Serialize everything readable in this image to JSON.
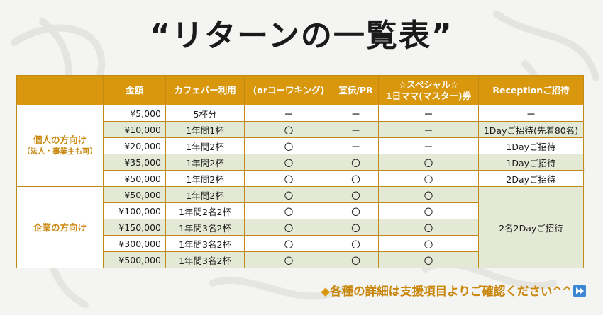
{
  "title": "“リターンの一覧表”",
  "table": {
    "headers": [
      "",
      "金額",
      "カフェバー利用",
      "(orコーワキング)",
      "宣伝/PR",
      "☆スペシャル☆\n1日ママ(マスター)券",
      "Receptionご招待"
    ],
    "groups": [
      {
        "label": "個人の方向け",
        "sublabel": "（法人・事業主も可）",
        "rows": [
          {
            "amount": "¥5,000",
            "cafe": "5杯分",
            "coworking": "ー",
            "pr": "ー",
            "special": "ー",
            "reception": "ー"
          },
          {
            "amount": "¥10,000",
            "cafe": "1年間1杯",
            "coworking": "〇",
            "pr": "ー",
            "special": "ー",
            "reception": "1Dayご招待(先着80名)"
          },
          {
            "amount": "¥20,000",
            "cafe": "1年間2杯",
            "coworking": "〇",
            "pr": "ー",
            "special": "ー",
            "reception": "1Dayご招待"
          },
          {
            "amount": "¥35,000",
            "cafe": "1年間2杯",
            "coworking": "〇",
            "pr": "〇",
            "special": "〇",
            "reception": "1Dayご招待"
          },
          {
            "amount": "¥50,000",
            "cafe": "1年間2杯",
            "coworking": "〇",
            "pr": "〇",
            "special": "〇",
            "reception": "2Dayご招待"
          }
        ]
      },
      {
        "label": "企業の方向け",
        "sublabel": "",
        "reception_merged": "2名2Dayご招待",
        "rows": [
          {
            "amount": "¥50,000",
            "cafe": "1年間2杯",
            "coworking": "〇",
            "pr": "〇",
            "special": "〇"
          },
          {
            "amount": "¥100,000",
            "cafe": "1年間2名2杯",
            "coworking": "〇",
            "pr": "〇",
            "special": "〇"
          },
          {
            "amount": "¥150,000",
            "cafe": "1年間3名2杯",
            "coworking": "〇",
            "pr": "〇",
            "special": "〇"
          },
          {
            "amount": "¥300,000",
            "cafe": "1年間3名2杯",
            "coworking": "〇",
            "pr": "〇",
            "special": "〇"
          },
          {
            "amount": "¥500,000",
            "cafe": "1年間3名2杯",
            "coworking": "〇",
            "pr": "〇",
            "special": "〇"
          }
        ]
      }
    ]
  },
  "footer": {
    "diamond": "◆",
    "text": "各種の詳細は支援項目よりご確認ください^^",
    "icon": "fast-forward-icon"
  },
  "colors": {
    "header_bg": "#d9970d",
    "border": "#c08a14",
    "alt_row": "#e4e9d6",
    "accent_text": "#c8860a",
    "icon_blue": "#3d86d6"
  }
}
